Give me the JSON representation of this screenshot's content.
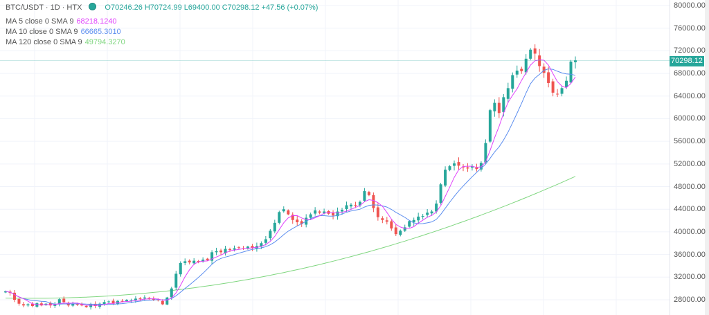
{
  "header": {
    "symbol": "BTC/USDT · 1D · HTX",
    "open": "O70246.26",
    "high": "H70724.99",
    "low": "L69400.00",
    "close": "C70298.12",
    "change": "+47.56 (+0.07%)"
  },
  "indicators": [
    {
      "label": "MA 5 close 0 SMA 9",
      "value": "68218.1240",
      "color": "#e040fb"
    },
    {
      "label": "MA 10 close 0 SMA 9",
      "value": "66665.3010",
      "color": "#5b8def"
    },
    {
      "label": "MA 120 close 0 SMA 9",
      "value": "49794.3270",
      "color": "#7fd67f"
    }
  ],
  "price_tag": "70298.12",
  "colors": {
    "up": "#26a69a",
    "down": "#ef5350",
    "grid": "#f0f3fa"
  },
  "chart_data": {
    "type": "candlestick",
    "title": "",
    "xlabel": "",
    "ylabel": "",
    "ylim": [
      25000,
      82000
    ],
    "y_ticks": [
      "80000.00",
      "76000.00",
      "72000.00",
      "68000.00",
      "64000.00",
      "60000.00",
      "56000.00",
      "52000.00",
      "48000.00",
      "44000.00",
      "40000.00",
      "36000.00",
      "32000.00",
      "28000.00"
    ],
    "last_price": 70298.12,
    "closes": [
      29500,
      29200,
      28000,
      27300,
      27000,
      27200,
      26900,
      27400,
      27000,
      27300,
      27000,
      27200,
      28100,
      27600,
      27000,
      27300,
      27100,
      27000,
      26700,
      27200,
      26900,
      27300,
      27600,
      27700,
      27300,
      27800,
      27700,
      28000,
      27900,
      28200,
      28100,
      28400,
      28200,
      28000,
      27900,
      27200,
      28400,
      30000,
      32600,
      34500,
      34800,
      34600,
      34900,
      34700,
      35100,
      35000,
      36400,
      36600,
      36400,
      37000,
      36800,
      37100,
      37200,
      37000,
      37400,
      37200,
      37500,
      38000,
      38700,
      40200,
      41600,
      43500,
      44000,
      43100,
      42100,
      41700,
      41400,
      42500,
      43100,
      43800,
      43400,
      43600,
      43200,
      42900,
      43600,
      43900,
      44700,
      44800,
      44600,
      45300,
      47200,
      46500,
      44200,
      42600,
      42100,
      41800,
      40600,
      39600,
      40200,
      40800,
      41900,
      42100,
      42700,
      42800,
      43400,
      43600,
      45000,
      48400,
      51000,
      51600,
      52100,
      51700,
      51400,
      51200,
      51600,
      51100,
      52200,
      55700,
      61500,
      62800,
      61000,
      63800,
      65400,
      67700,
      68500,
      68400,
      70600,
      72200,
      71500,
      69300,
      68100,
      66300,
      64600,
      64400,
      65400,
      66700,
      70100,
      70298
    ],
    "ma5_last": 68218.124,
    "ma10_last": 66665.301,
    "ma120_last": 49794.327
  }
}
